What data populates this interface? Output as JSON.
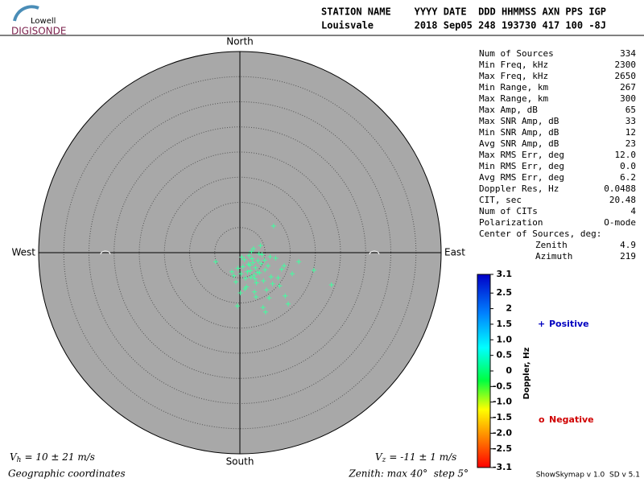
{
  "logo": {
    "top": "Lowell",
    "bottom": "DIGISONDE"
  },
  "header": {
    "line1": "STATION NAME    YYYY DATE  DDD HHMMSS AXN PPS IGP",
    "line2": "Louisvale       2018 Sep05 248 193730 417 100 -8J"
  },
  "stats": {
    "rows": [
      [
        "Num of Sources",
        "334"
      ],
      [
        "Min Freq, kHz",
        "2300"
      ],
      [
        "Max Freq, kHz",
        "2650"
      ],
      [
        "Min Range, km",
        "267"
      ],
      [
        "Max Range, km",
        "300"
      ],
      [
        "Max Amp, dB",
        "65"
      ],
      [
        "Max SNR Amp, dB",
        "33"
      ],
      [
        "Min SNR Amp, dB",
        "12"
      ],
      [
        "Avg SNR Amp, dB",
        "23"
      ],
      [
        "Max RMS Err, deg",
        "12.0"
      ],
      [
        "Min RMS Err, deg",
        "0.0"
      ],
      [
        "Avg RMS Err, deg",
        "6.2"
      ],
      [
        "Doppler Res, Hz",
        "0.0488"
      ],
      [
        "CIT, sec",
        "20.48"
      ],
      [
        "Num of CITs",
        "4"
      ],
      [
        "Polarization",
        "O-mode"
      ]
    ],
    "center_title": "Center of Sources, deg:",
    "center_rows": [
      [
        "Zenith",
        "4.9"
      ],
      [
        "Azimuth",
        "219"
      ]
    ]
  },
  "chart_data": {
    "type": "skymap",
    "directions": {
      "north": "North",
      "south": "South",
      "east": "East",
      "west": "West"
    },
    "xlim": [
      -40,
      40
    ],
    "ylim": [
      -40,
      40
    ],
    "rings": [
      5,
      10,
      15,
      20,
      25,
      30,
      35
    ],
    "marker_color": "#40ffa0",
    "x": [
      6.7,
      18.2,
      14.7,
      -0.5,
      -4.8,
      5.1,
      9.6,
      11.7,
      2.0,
      3.1,
      1.5,
      4.2,
      2.8,
      0.6,
      3.6,
      5.0,
      1.1,
      2.4,
      3.9,
      4.7,
      0.2,
      1.8,
      3.3,
      2.6,
      5.6,
      6.2,
      0.9,
      2.1,
      4.4,
      3.0,
      1.3,
      -0.4,
      -1.2,
      7.1,
      8.3,
      6.5,
      5.3,
      2.9,
      1.7,
      3.8,
      4.9,
      -0.8,
      0.4,
      2.2,
      3.5,
      6.0,
      7.6,
      9.0,
      1.0,
      2.7,
      4.1,
      5.8,
      -1.6,
      0.1,
      3.2,
      4.6,
      7.9,
      10.4,
      8.8,
      2.3
    ],
    "y": [
      5.3,
      -6.4,
      -3.5,
      -10.6,
      -1.8,
      -11.8,
      -10.2,
      -1.8,
      -2.5,
      -3.0,
      -3.8,
      -2.2,
      -4.5,
      -2.8,
      -1.6,
      -3.4,
      -5.1,
      -1.2,
      -4.0,
      -5.6,
      -4.2,
      -0.6,
      -6.0,
      -2.0,
      -2.6,
      -4.8,
      -1.4,
      -3.6,
      -0.4,
      -5.2,
      -6.8,
      -3.1,
      -4.6,
      -1.1,
      -3.3,
      -6.2,
      -7.4,
      -7.8,
      -2.3,
      -0.2,
      -1.5,
      -5.8,
      -0.9,
      -4.9,
      -3.9,
      -0.8,
      -5.0,
      -8.6,
      -7.2,
      0.8,
      1.4,
      -9.0,
      -3.8,
      -8.0,
      -8.8,
      -10.9,
      -6.6,
      -4.2,
      -2.6,
      0.2
    ],
    "colorbar": {
      "label": "Doppler, Hz",
      "lim": [
        -3.1,
        3.1
      ],
      "ticks": [
        3.1,
        2.5,
        2,
        {
          "value": 1.5,
          "label": "1.5"
        },
        {
          "value": 1,
          "label": "1.0"
        },
        0.5,
        0,
        -0.5,
        {
          "value": -1,
          "label": "-1.0"
        },
        -1.5,
        {
          "value": -2,
          "label": "-2.0"
        },
        -2.5,
        -3.1
      ]
    },
    "legend": {
      "positive_symbol": "+",
      "positive": "Positive",
      "negative_symbol": "o",
      "negative": "Negative"
    }
  },
  "footer": {
    "vh_label": "V",
    "vh_sub": "h",
    "vh_text": "= 10 ± 21 m/s",
    "vz_label": "V",
    "vz_sub": "z",
    "vz_text": "= -11 ± 1 m/s",
    "coords": "Geographic coordinates",
    "zenith": "Zenith: max 40°  step 5°",
    "version": "ShowSkymap v 1.0  SD v 5.1"
  }
}
